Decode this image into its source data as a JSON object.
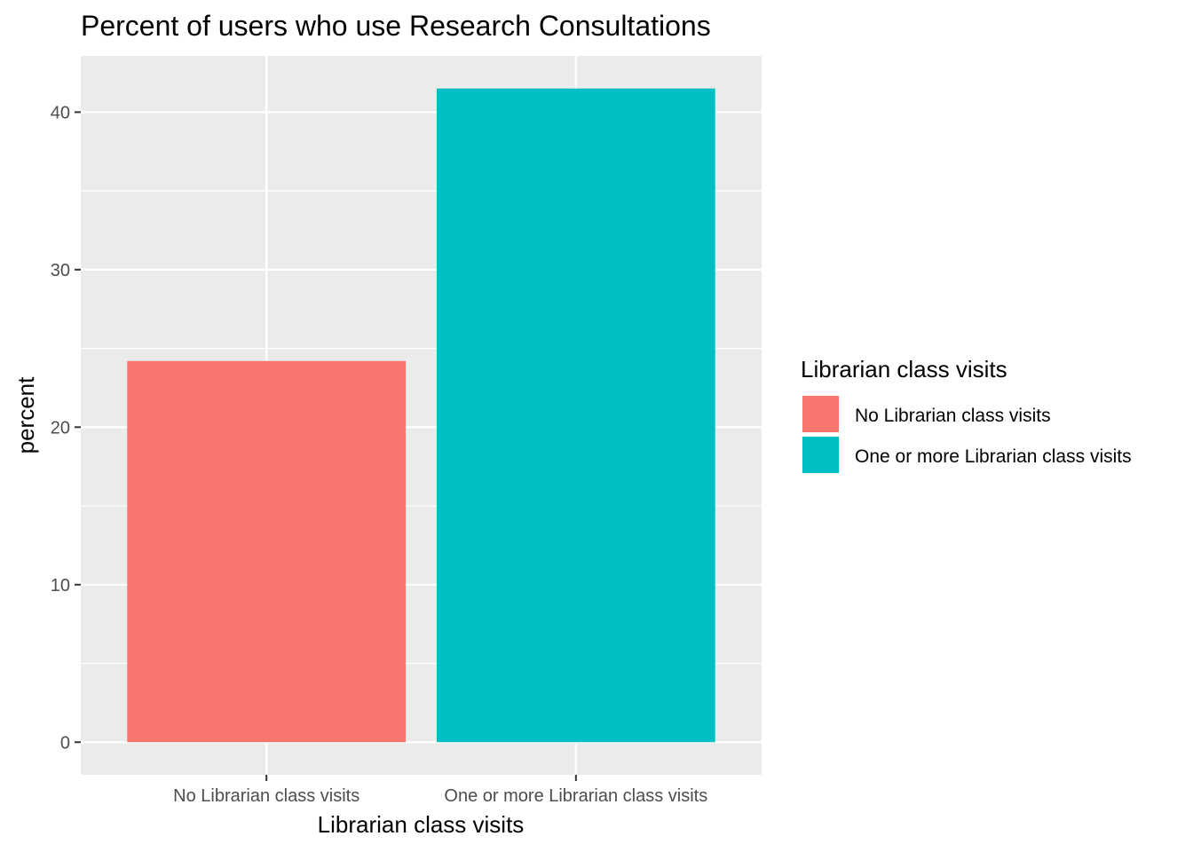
{
  "chart_data": {
    "type": "bar",
    "title": "Percent of users who use Research Consultations",
    "xlabel": "Librarian class visits",
    "ylabel": "percent",
    "categories": [
      "No Librarian class visits",
      "One or more Librarian class visits"
    ],
    "values": [
      24.2,
      41.5
    ],
    "colors": [
      "#F8766D",
      "#00BFC4"
    ],
    "ylim": [
      -2.07,
      43.57
    ],
    "yticks": [
      0,
      10,
      20,
      30,
      40
    ],
    "grid": true,
    "panel_background": "#EBEBEB",
    "legend": {
      "title": "Librarian class visits",
      "placement": "right",
      "items": [
        "No Librarian class visits",
        "One or more Librarian class visits"
      ]
    }
  }
}
